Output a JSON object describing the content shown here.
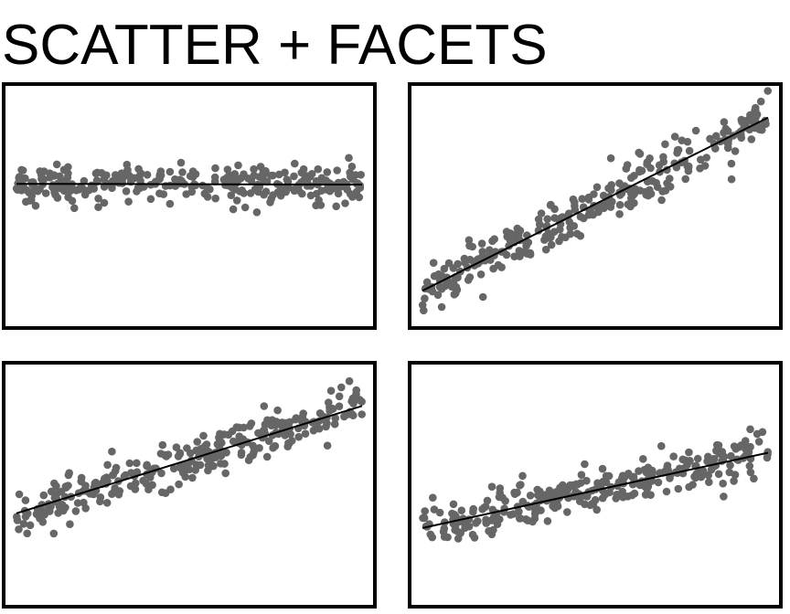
{
  "title": "SCATTER + FACETS",
  "colors": {
    "points": "#666666",
    "fit_line": "#000000",
    "frame": "#000000",
    "background": "#ffffff"
  },
  "chart_data": [
    {
      "type": "scatter",
      "panel": "top-left",
      "xlim": [
        0,
        1
      ],
      "ylim": [
        -1.8,
        1.2
      ],
      "n_points": 300,
      "noise_sd": 0.13,
      "trend": {
        "intercept": 0.0,
        "slope": -0.01
      },
      "axes_visible": false,
      "grid": false
    },
    {
      "type": "scatter",
      "panel": "top-right",
      "xlim": [
        0,
        1
      ],
      "ylim": [
        -1.5,
        1.45
      ],
      "n_points": 300,
      "noise_sd": 0.16,
      "trend": {
        "intercept": -1.15,
        "slope": 2.3
      },
      "axes_visible": false,
      "grid": false
    },
    {
      "type": "scatter",
      "panel": "bottom-left",
      "xlim": [
        0,
        1
      ],
      "ylim": [
        -1.5,
        1.6
      ],
      "n_points": 300,
      "noise_sd": 0.15,
      "trend": {
        "intercept": -0.35,
        "slope": 1.5
      },
      "axes_visible": false,
      "grid": false
    },
    {
      "type": "scatter",
      "panel": "bottom-right",
      "xlim": [
        0,
        1
      ],
      "ylim": [
        -1.4,
        1.55
      ],
      "n_points": 300,
      "noise_sd": 0.15,
      "trend": {
        "intercept": -0.5,
        "slope": 1.0
      },
      "axes_visible": false,
      "grid": false
    }
  ]
}
